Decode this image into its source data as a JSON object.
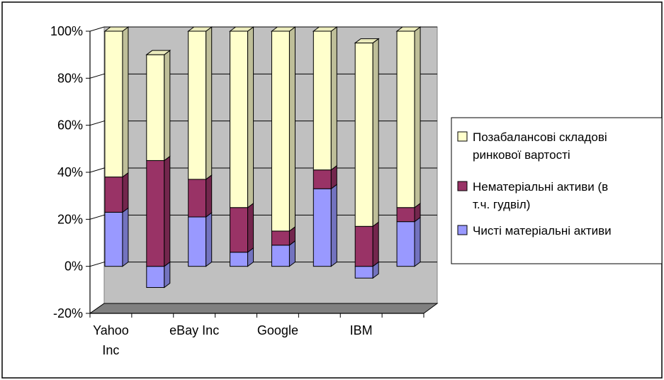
{
  "chart_data": {
    "type": "bar",
    "stacked": true,
    "three_d": true,
    "percent_axis": true,
    "title": "",
    "xlabel": "",
    "ylabel": "",
    "ylim": [
      -20,
      100
    ],
    "ytick_labels": [
      "-20%",
      "0%",
      "20%",
      "40%",
      "60%",
      "80%",
      "100%"
    ],
    "grid": true,
    "legend_position": "right",
    "category_labels_shown": [
      "Yahoo Inc",
      "eBay Inc",
      "Google",
      "IBM"
    ],
    "series": [
      {
        "name": "Чисті матеріальні активи",
        "color": "#9999ff",
        "values": [
          23,
          -9,
          21,
          6,
          9,
          33,
          -5,
          19
        ]
      },
      {
        "name": "Нематеріальні активи (в т.ч. гудвіл)",
        "color": "#993366",
        "values": [
          15,
          45,
          16,
          19,
          6,
          8,
          17,
          6
        ]
      },
      {
        "name": "Позабалансові складові ринкової вартості",
        "color": "#ffffcc",
        "values": [
          62,
          45,
          63,
          75,
          85,
          59,
          78,
          75
        ]
      }
    ]
  },
  "legend": {
    "items": [
      {
        "line1": "Позабалансові складові",
        "line2": "ринкової вартості",
        "color": "#ffffcc"
      },
      {
        "line1": "Нематеріальні активи (в",
        "line2": "т.ч. гудвіл)",
        "color": "#993366"
      },
      {
        "line1": "Чисті матеріальні активи",
        "line2": "",
        "color": "#9999ff"
      }
    ]
  }
}
